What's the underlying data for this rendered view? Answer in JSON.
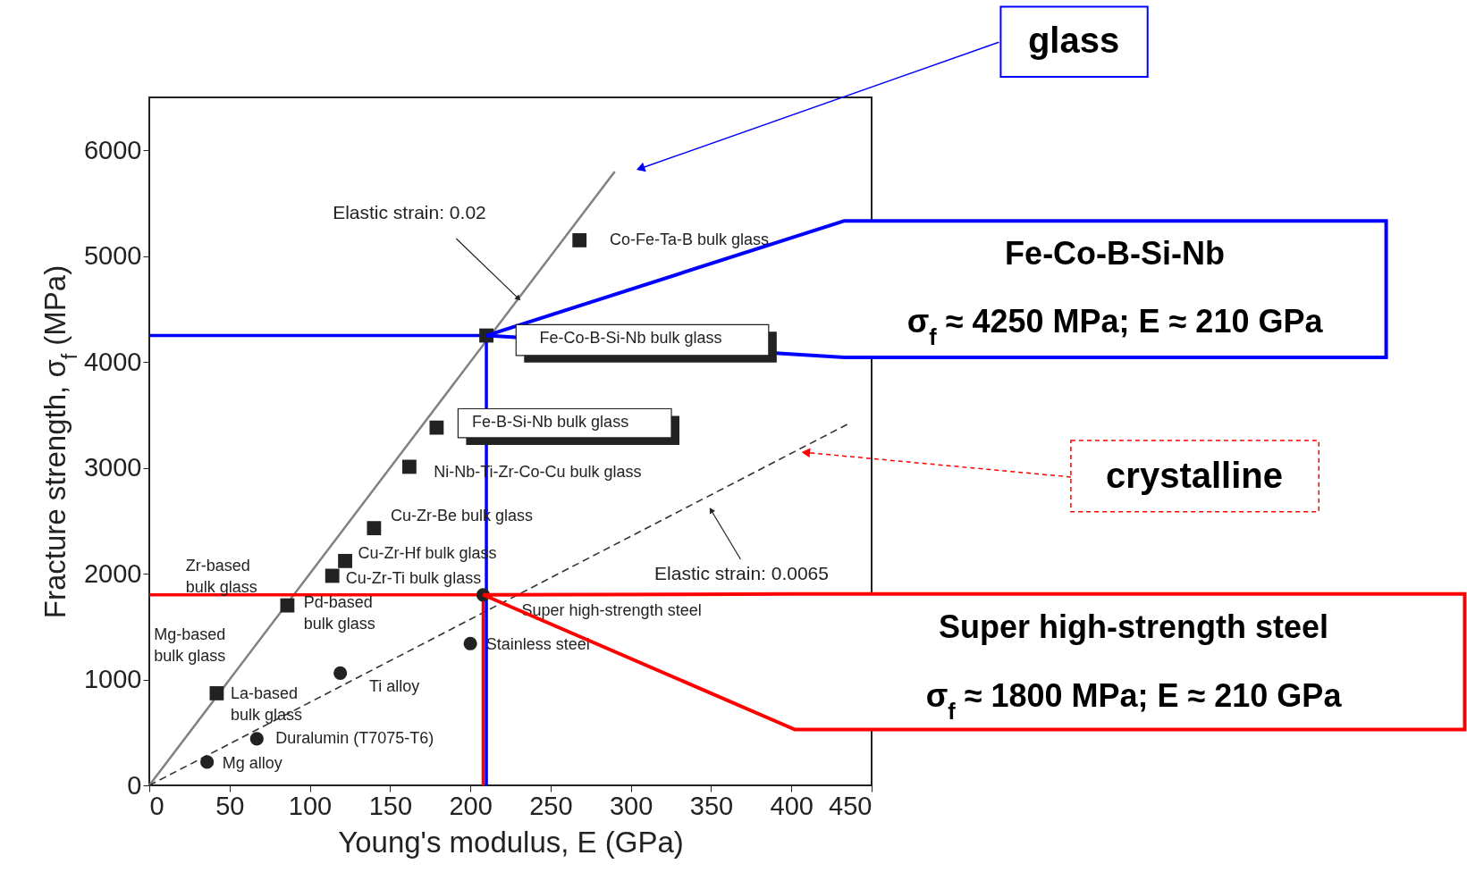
{
  "chart_data": {
    "type": "scatter",
    "xlabel": "Young's modulus,  E (GPa)",
    "ylabel": "Fracture strength, σ$_{f}$ (MPa)",
    "xlim": [
      0,
      450
    ],
    "xticks": [
      0,
      50,
      100,
      150,
      200,
      250,
      300,
      350,
      400,
      450
    ],
    "ylim": [
      0,
      6500
    ],
    "yticks": [
      0,
      1000,
      2000,
      3000,
      4000,
      5000,
      6000
    ],
    "series": [
      {
        "type": "line",
        "color": "#808080",
        "line_style": "solid",
        "marker": "none",
        "x": [
          0,
          290
        ],
        "values": [
          0,
          5800
        ]
      },
      {
        "type": "line",
        "color": "#333333",
        "line_style": "dashed",
        "marker": "none",
        "x": [
          0,
          436
        ],
        "values": [
          0,
          3420
        ]
      },
      {
        "type": "scatter",
        "color": "#222222",
        "marker": "square",
        "x": [
          268,
          210,
          179,
          162,
          140,
          122,
          114,
          86,
          42
        ],
        "values": [
          5150,
          4250,
          3380,
          3010,
          2430,
          2120,
          1980,
          1700,
          870
        ]
      },
      {
        "type": "scatter",
        "color": "#222222",
        "marker": "circle",
        "x": [
          208,
          200,
          119,
          67,
          36
        ],
        "values": [
          1800,
          1340,
          1060,
          440,
          220
        ]
      },
      {
        "type": "line",
        "color": "#ff0000",
        "line_style": "solid",
        "marker": "none",
        "x": [
          0,
          208,
          208
        ],
        "values": [
          1800,
          1800,
          0
        ]
      },
      {
        "type": "line",
        "color": "#0000ff",
        "line_style": "solid",
        "marker": "none",
        "x": [
          0,
          210,
          210
        ],
        "values": [
          4250,
          4250,
          0
        ]
      }
    ],
    "annotations": [
      {
        "text": "Co-Fe-Ta-B bulk glass",
        "x": 268,
        "y": 5150
      },
      "Fe-Co-B-Si-Nb bulk glass",
      {
        "text": "Fe-B-Si-Nb bulk glass",
        "x": 179,
        "y": 3380
      },
      {
        "text": "Ni-Nb-Ti-Zr-Co-Cu bulk glass",
        "x": 162,
        "y": 3010
      },
      {
        "text": "Cu-Zr-Be bulk glass",
        "x": 140,
        "y": 2430
      },
      {
        "text": "Cu-Zr-Hf bulk glass",
        "x": 122,
        "y": 2120
      },
      {
        "text": "Cu-Zr-Ti bulk glass",
        "x": 114,
        "y": 1980
      },
      {
        "text": "Zr-based\nbulk glass",
        "x": 86,
        "y": 1700
      },
      {
        "text": "Pd-based\nbulk glass",
        "x": 86,
        "y": 1700
      },
      "Mg-based\nbulk glass",
      {
        "text": "La-based\nbulk glass",
        "x": 42,
        "y": 870
      },
      {
        "text": "Super high-strength steel",
        "x": 208,
        "y": 1800
      },
      {
        "text": "Stainless steel",
        "x": 200,
        "y": 1340
      },
      {
        "text": "Ti alloy",
        "x": 119,
        "y": 1060
      },
      {
        "text": "Duralumin (T7075-T6)",
        "x": 67,
        "y": 440
      },
      {
        "text": "Mg alloy",
        "x": 36,
        "y": 220
      },
      {
        "text": "Elastic strain: 0.02",
        "x": 230,
        "y": 4600
      },
      {
        "text": "Elastic strain: 0.0065",
        "x": 350,
        "y": 2600
      },
      "glass",
      "Fe-Co-B-Si-Nb",
      "σ$_{f}$ ≈ 4250 MPa; E ≈ 210 GPa",
      {
        "text": "crystalline",
        "x": 409,
        "y": 3145
      },
      "Super high-strength steel",
      "σ$_{f}$ ≈ 1800 MPa; E ≈ 210 GPa"
    ]
  }
}
